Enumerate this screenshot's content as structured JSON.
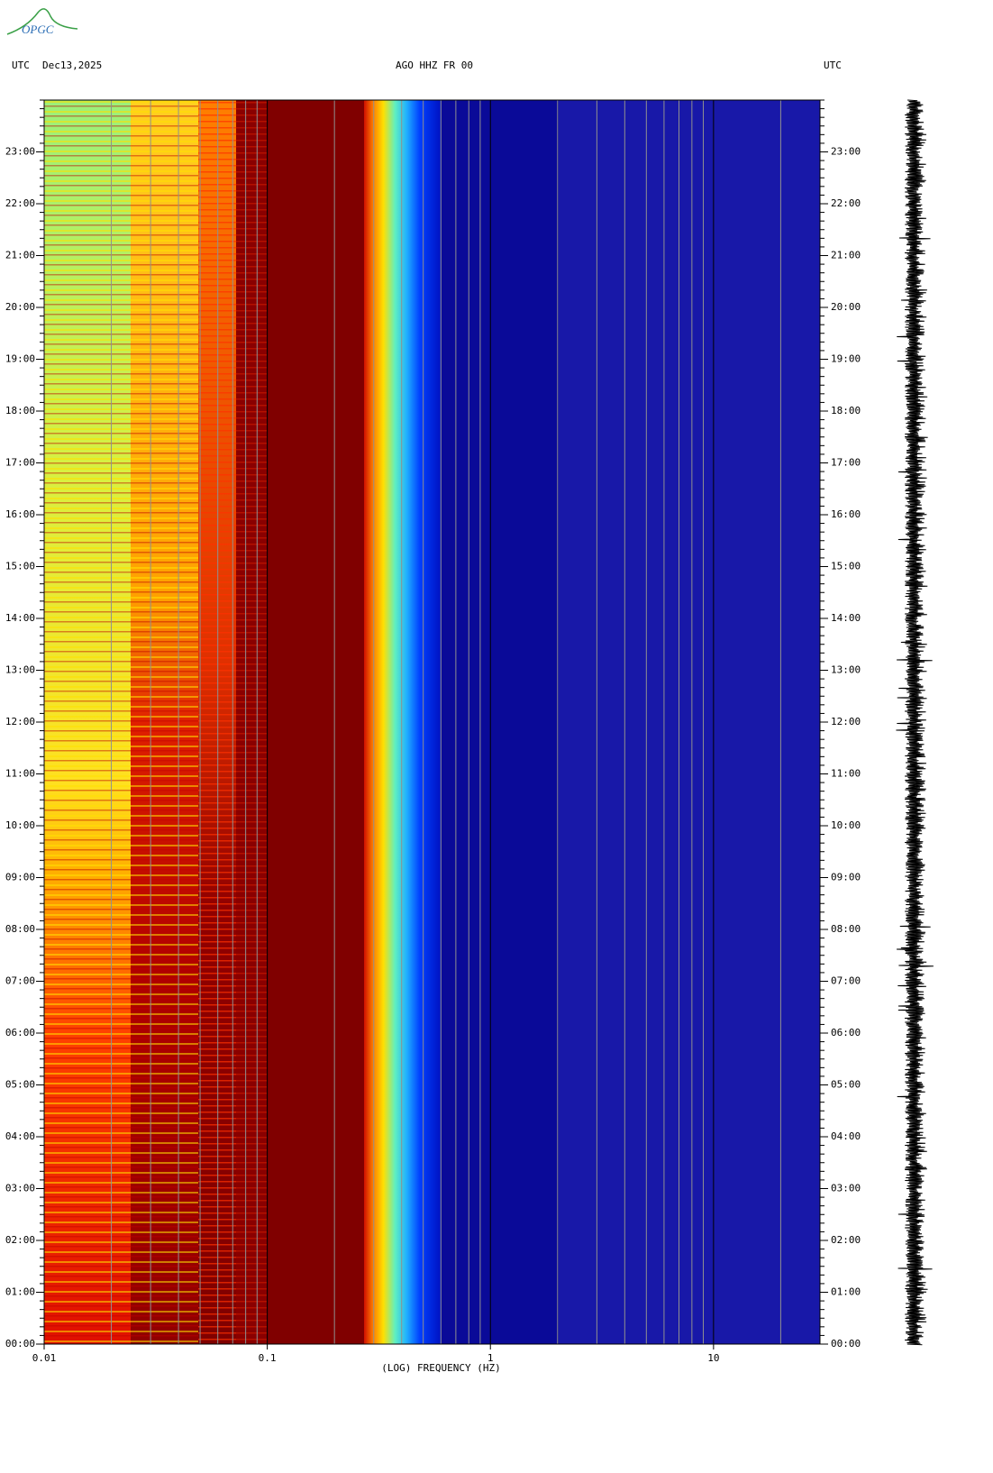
{
  "logo": "OPGC",
  "chart_data": {
    "type": "spectrogram",
    "title": "AGO HHZ FR 00",
    "timezone": "UTC",
    "date": "Dec13,2025",
    "timezone_right": "UTC",
    "xlabel": "(LOG) FREQUENCY (HZ)",
    "xscale": "log",
    "xlim": [
      0.01,
      30
    ],
    "xticks": [
      0.01,
      0.1,
      1,
      10
    ],
    "ylim": [
      0,
      24
    ],
    "yticks": [
      {
        "value": 0,
        "label": "00:00"
      },
      {
        "value": 1,
        "label": "01:00"
      },
      {
        "value": 2,
        "label": "02:00"
      },
      {
        "value": 3,
        "label": "03:00"
      },
      {
        "value": 4,
        "label": "04:00"
      },
      {
        "value": 5,
        "label": "05:00"
      },
      {
        "value": 6,
        "label": "06:00"
      },
      {
        "value": 7,
        "label": "07:00"
      },
      {
        "value": 8,
        "label": "08:00"
      },
      {
        "value": 9,
        "label": "09:00"
      },
      {
        "value": 10,
        "label": "10:00"
      },
      {
        "value": 11,
        "label": "11:00"
      },
      {
        "value": 12,
        "label": "12:00"
      },
      {
        "value": 13,
        "label": "13:00"
      },
      {
        "value": 14,
        "label": "14:00"
      },
      {
        "value": 15,
        "label": "15:00"
      },
      {
        "value": 16,
        "label": "16:00"
      },
      {
        "value": 17,
        "label": "17:00"
      },
      {
        "value": 18,
        "label": "18:00"
      },
      {
        "value": 19,
        "label": "19:00"
      },
      {
        "value": 20,
        "label": "20:00"
      },
      {
        "value": 21,
        "label": "21:00"
      },
      {
        "value": 22,
        "label": "22:00"
      },
      {
        "value": 23,
        "label": "23:00"
      }
    ],
    "grid": true
  }
}
